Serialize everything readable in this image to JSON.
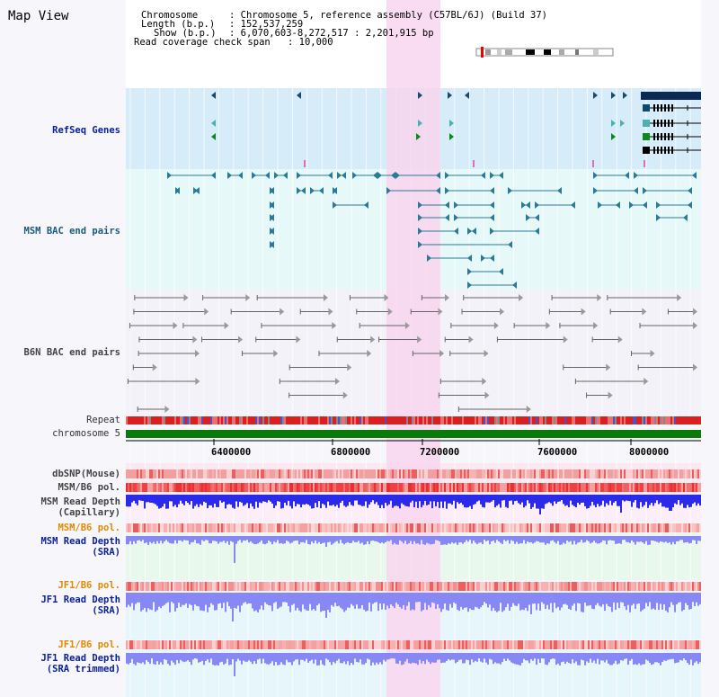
{
  "title": "Map View",
  "info": {
    "chromosome_key": "Chromosome",
    "chromosome_val": ": Chromosome 5, reference assembly (C57BL/6J) (Build 37)",
    "length_key": "Length (b.p.)",
    "length_val": ": 152,537,259",
    "show_key": "Show (b.p.)",
    "show_val": ": 6,070,603-8,272,517 : 2,201,915 bp",
    "coverage_key": "Read coverage check span",
    "coverage_val": ": 10,000"
  },
  "tracks": {
    "refseq": "RefSeq Genes",
    "msm_bac": "MSM BAC end pairs",
    "b6n_bac": "B6N BAC end pairs",
    "repeat": "Repeat",
    "chromosome": "chromosome 5",
    "dbsnp": "dbSNP(Mouse)",
    "msm_b6_pol_1": "MSM/B6 pol.",
    "msm_depth_cap_1": "MSM Read Depth",
    "msm_depth_cap_2": "(Capillary)",
    "msm_b6_pol_2": "MSM/B6 pol.",
    "msm_depth_sra_1": "MSM Read Depth",
    "msm_depth_sra_2": "(SRA)",
    "jf1_b6_pol_1": "JF1/B6 pol.",
    "jf1_depth_sra_1": "JF1 Read Depth",
    "jf1_depth_sra_2": "(SRA)",
    "jf1_b6_pol_2": "JF1/B6 pol.",
    "jf1_depth_trim_1": "JF1 Read Depth",
    "jf1_depth_trim_2": "(SRA trimmed)"
  },
  "axis": {
    "ticks": [
      "6400000",
      "6800000",
      "7200000",
      "7600000",
      "8000000"
    ]
  },
  "colors": {
    "refseq_bg": "#d6ecf8",
    "msm_bg": "#e6f8f8",
    "highlight": "#f8d6ee",
    "chromosome": "#0a7a0a",
    "depth_dark": "#2a2ae8",
    "depth_light": "#8888f4"
  }
}
